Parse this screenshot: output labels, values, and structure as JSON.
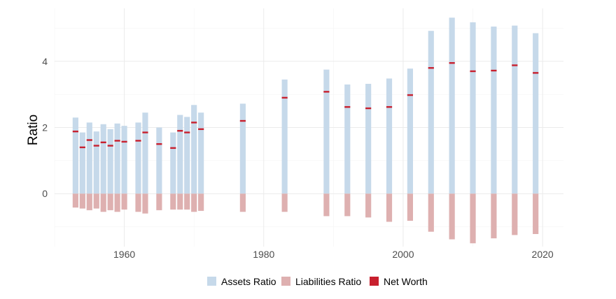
{
  "chart_data": {
    "type": "bar",
    "title": "",
    "xlabel": "",
    "ylabel": "Ratio",
    "xlim": [
      1950,
      2023
    ],
    "ylim": [
      -1.6,
      5.6
    ],
    "x_ticks": [
      1960,
      1980,
      2000,
      2020
    ],
    "y_ticks": [
      0,
      2,
      4
    ],
    "grid": true,
    "legend_position": "bottom",
    "colors": {
      "assets": "#c6d9ea",
      "liabilities": "#deb0b0",
      "net_worth": "#c8202e",
      "grid": "#ebebeb"
    },
    "x": [
      1953,
      1954,
      1955,
      1956,
      1957,
      1958,
      1959,
      1960,
      1962,
      1963,
      1965,
      1967,
      1968,
      1969,
      1970,
      1971,
      1977,
      1983,
      1989,
      1992,
      1995,
      1998,
      2001,
      2004,
      2007,
      2010,
      2013,
      2016,
      2019
    ],
    "series": [
      {
        "name": "Assets Ratio",
        "values": [
          2.3,
          1.85,
          2.15,
          1.88,
          2.1,
          1.95,
          2.12,
          2.05,
          2.15,
          2.45,
          2.0,
          1.85,
          2.38,
          2.32,
          2.68,
          2.45,
          2.72,
          3.45,
          3.75,
          3.3,
          3.32,
          3.48,
          3.78,
          4.92,
          5.32,
          5.18,
          5.05,
          5.08,
          4.85
        ]
      },
      {
        "name": "Liabilities Ratio",
        "values": [
          -0.42,
          -0.45,
          -0.5,
          -0.45,
          -0.55,
          -0.5,
          -0.55,
          -0.48,
          -0.55,
          -0.6,
          -0.5,
          -0.48,
          -0.48,
          -0.48,
          -0.55,
          -0.52,
          -0.55,
          -0.55,
          -0.68,
          -0.68,
          -0.72,
          -0.85,
          -0.82,
          -1.15,
          -1.38,
          -1.5,
          -1.35,
          -1.25,
          -1.22
        ]
      },
      {
        "name": "Net Worth",
        "values": [
          1.88,
          1.4,
          1.62,
          1.45,
          1.55,
          1.45,
          1.6,
          1.57,
          1.6,
          1.85,
          1.5,
          1.38,
          1.9,
          1.85,
          2.15,
          1.95,
          2.2,
          2.9,
          3.08,
          2.62,
          2.58,
          2.62,
          2.98,
          3.8,
          3.95,
          3.7,
          3.72,
          3.88,
          3.65
        ]
      }
    ]
  }
}
